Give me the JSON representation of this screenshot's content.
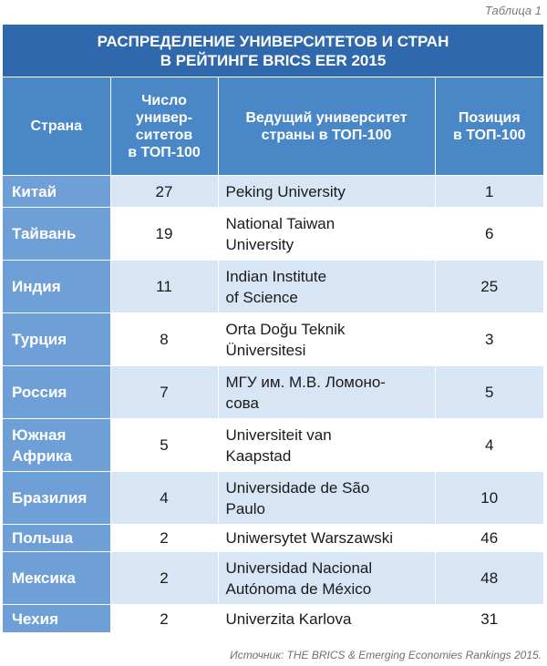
{
  "caption_label": "Таблица 1",
  "title_line1": "РАСПРЕДЕЛЕНИЕ УНИВЕРСИТЕТОВ И СТРАН",
  "title_line2": "В РЕЙТИНГЕ BRICS EER 2015",
  "headers": {
    "country": "Страна",
    "count_lines": [
      "Число",
      "универ-",
      "ситетов",
      "в ТОП-100"
    ],
    "leading_lines": [
      "Ведущий университет",
      "страны в ТОП-100"
    ],
    "position_lines": [
      "Позиция",
      "в ТОП-100"
    ]
  },
  "rows": [
    {
      "country": [
        "Китай"
      ],
      "count": "27",
      "university": [
        "Peking University"
      ],
      "position": "1"
    },
    {
      "country": [
        "Тайвань"
      ],
      "count": "19",
      "university": [
        "National Taiwan",
        "University"
      ],
      "position": "6"
    },
    {
      "country": [
        "Индия"
      ],
      "count": "11",
      "university": [
        "Indian Institute",
        "of Science"
      ],
      "position": "25"
    },
    {
      "country": [
        "Турция"
      ],
      "count": "8",
      "university": [
        "Orta Doğu Teknik",
        "Üniversitesi"
      ],
      "position": "3"
    },
    {
      "country": [
        "Россия"
      ],
      "count": "7",
      "university": [
        "МГУ им. М.В. Ломоно-",
        "сова"
      ],
      "position": "5"
    },
    {
      "country": [
        "Южная",
        "Африка"
      ],
      "count": "5",
      "university": [
        "Universiteit van",
        "Kaapstad"
      ],
      "position": "4"
    },
    {
      "country": [
        "Бразилия"
      ],
      "count": "4",
      "university": [
        "Universidade de São",
        "Paulo"
      ],
      "position": "10"
    },
    {
      "country": [
        "Польша"
      ],
      "count": "2",
      "university": [
        "Uniwersytet Warszawski"
      ],
      "position": "46"
    },
    {
      "country": [
        "Мексика"
      ],
      "count": "2",
      "university": [
        "Universidad Nacional",
        "Autónoma de México"
      ],
      "position": "48"
    },
    {
      "country": [
        "Чехия"
      ],
      "count": "2",
      "university": [
        "Univerzita Karlova"
      ],
      "position": "31"
    }
  ],
  "source": "Источник: THE BRICS & Emerging Economies Rankings 2015."
}
